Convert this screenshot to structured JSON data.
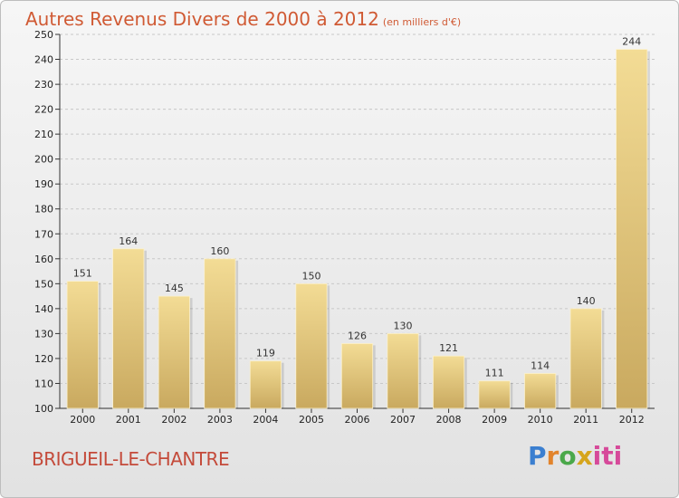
{
  "header": {
    "title": "Autres Revenus Divers de 2000 à 2012",
    "unit": "(en milliers d'€)"
  },
  "footer": {
    "location": "BRIGUEIL-LE-CHANTRE",
    "logo_parts": [
      "P",
      "r",
      "o",
      "x",
      "iti"
    ]
  },
  "colors": {
    "bar_light": "#f3dc95",
    "bar_dark": "#c9a95f",
    "title": "#d05a34"
  },
  "chart_data": {
    "type": "bar",
    "categories": [
      "2000",
      "2001",
      "2002",
      "2003",
      "2004",
      "2005",
      "2006",
      "2007",
      "2008",
      "2009",
      "2010",
      "2011",
      "2012"
    ],
    "values": [
      151,
      164,
      145,
      160,
      119,
      150,
      126,
      130,
      121,
      111,
      114,
      140,
      244
    ],
    "data_labels": [
      "151",
      "164",
      "145",
      "160",
      "119",
      "150",
      "126",
      "130",
      "121",
      "111",
      "114",
      "140",
      "244"
    ],
    "title": "Autres Revenus Divers de 2000 à 2012",
    "xlabel": "",
    "ylabel": "",
    "ylim": [
      100,
      250
    ],
    "yticks": [
      100,
      110,
      120,
      130,
      140,
      150,
      160,
      170,
      180,
      190,
      200,
      210,
      220,
      230,
      240,
      250
    ],
    "grid": true
  }
}
